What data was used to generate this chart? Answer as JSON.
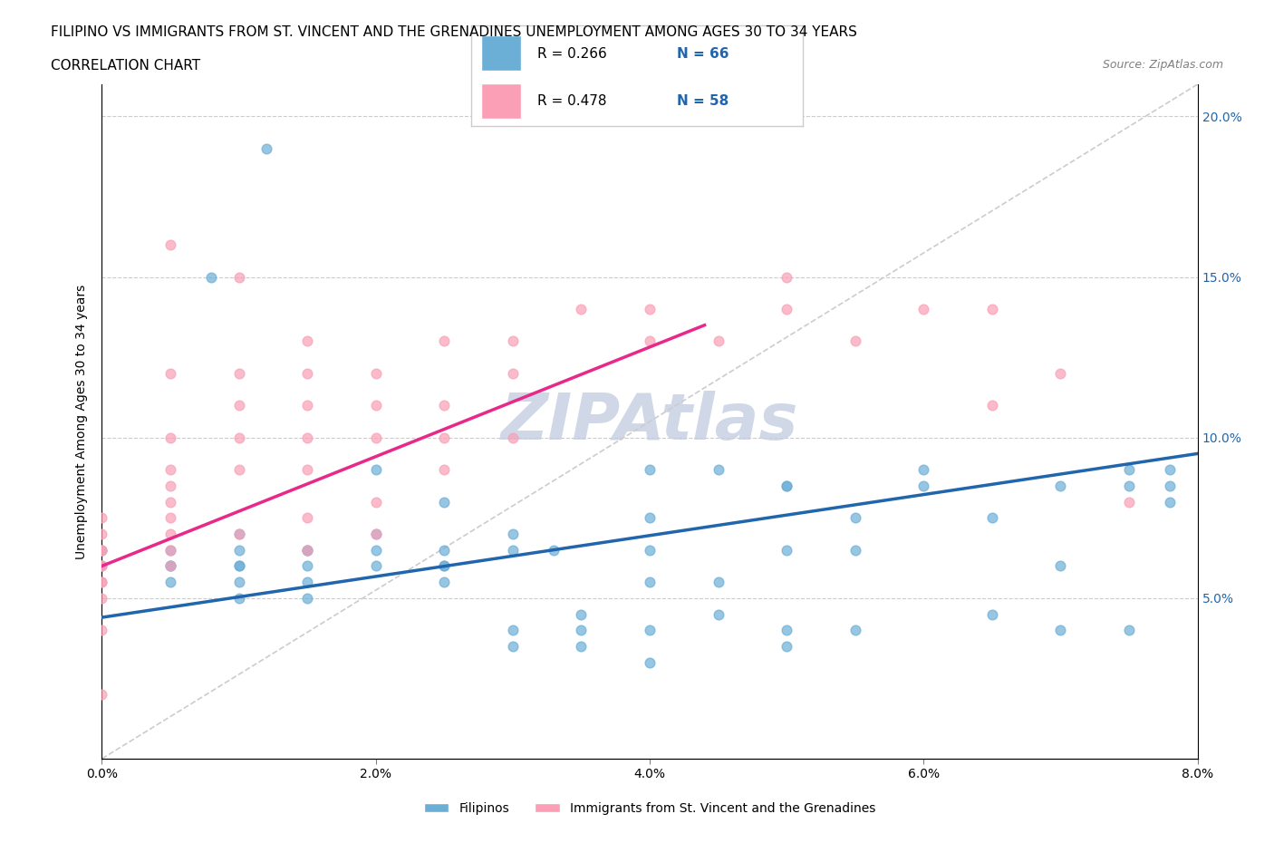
{
  "title_line1": "FILIPINO VS IMMIGRANTS FROM ST. VINCENT AND THE GRENADINES UNEMPLOYMENT AMONG AGES 30 TO 34 YEARS",
  "title_line2": "CORRELATION CHART",
  "source_text": "Source: ZipAtlas.com",
  "ylabel": "Unemployment Among Ages 30 to 34 years",
  "xlim": [
    0.0,
    0.08
  ],
  "ylim": [
    0.0,
    0.21
  ],
  "xtick_labels": [
    "0.0%",
    "2.0%",
    "4.0%",
    "6.0%",
    "8.0%"
  ],
  "xtick_values": [
    0.0,
    0.02,
    0.04,
    0.06,
    0.08
  ],
  "ytick_labels": [
    "5.0%",
    "10.0%",
    "15.0%",
    "20.0%"
  ],
  "ytick_values": [
    0.05,
    0.1,
    0.15,
    0.2
  ],
  "blue_color": "#6baed6",
  "pink_color": "#fa9fb5",
  "blue_line_color": "#2166ac",
  "pink_line_color": "#e7298a",
  "diag_line_color": "#cccccc",
  "watermark_color": "#d0d8e8",
  "legend_R1": "R = 0.266",
  "legend_N1": "N = 66",
  "legend_R2": "R = 0.478",
  "legend_N2": "N = 58",
  "blue_scatter_x": [
    0.0,
    0.0,
    0.005,
    0.005,
    0.005,
    0.005,
    0.01,
    0.01,
    0.01,
    0.01,
    0.01,
    0.01,
    0.015,
    0.015,
    0.015,
    0.015,
    0.015,
    0.02,
    0.02,
    0.02,
    0.02,
    0.025,
    0.025,
    0.025,
    0.025,
    0.025,
    0.03,
    0.03,
    0.03,
    0.03,
    0.033,
    0.035,
    0.035,
    0.035,
    0.04,
    0.04,
    0.04,
    0.04,
    0.04,
    0.04,
    0.045,
    0.045,
    0.045,
    0.05,
    0.05,
    0.05,
    0.05,
    0.05,
    0.055,
    0.055,
    0.055,
    0.06,
    0.06,
    0.065,
    0.065,
    0.07,
    0.07,
    0.07,
    0.075,
    0.075,
    0.075,
    0.078,
    0.078,
    0.078,
    0.008,
    0.012
  ],
  "blue_scatter_y": [
    0.06,
    0.065,
    0.065,
    0.06,
    0.06,
    0.055,
    0.06,
    0.06,
    0.065,
    0.07,
    0.055,
    0.05,
    0.065,
    0.06,
    0.055,
    0.05,
    0.065,
    0.065,
    0.07,
    0.06,
    0.09,
    0.06,
    0.08,
    0.06,
    0.055,
    0.065,
    0.07,
    0.065,
    0.04,
    0.035,
    0.065,
    0.04,
    0.035,
    0.045,
    0.09,
    0.075,
    0.065,
    0.055,
    0.04,
    0.03,
    0.09,
    0.045,
    0.055,
    0.085,
    0.085,
    0.065,
    0.035,
    0.04,
    0.075,
    0.065,
    0.04,
    0.085,
    0.09,
    0.075,
    0.045,
    0.085,
    0.06,
    0.04,
    0.085,
    0.09,
    0.04,
    0.09,
    0.085,
    0.08,
    0.15,
    0.19
  ],
  "pink_scatter_x": [
    0.0,
    0.0,
    0.0,
    0.0,
    0.0,
    0.0,
    0.0,
    0.0,
    0.0,
    0.0,
    0.005,
    0.005,
    0.005,
    0.005,
    0.005,
    0.005,
    0.005,
    0.005,
    0.005,
    0.005,
    0.01,
    0.01,
    0.01,
    0.01,
    0.01,
    0.01,
    0.015,
    0.015,
    0.015,
    0.015,
    0.015,
    0.015,
    0.015,
    0.02,
    0.02,
    0.02,
    0.02,
    0.02,
    0.025,
    0.025,
    0.025,
    0.025,
    0.03,
    0.03,
    0.03,
    0.035,
    0.04,
    0.04,
    0.045,
    0.05,
    0.05,
    0.055,
    0.06,
    0.065,
    0.065,
    0.07,
    0.075,
    0.0
  ],
  "pink_scatter_y": [
    0.06,
    0.065,
    0.055,
    0.05,
    0.06,
    0.07,
    0.075,
    0.065,
    0.055,
    0.04,
    0.07,
    0.065,
    0.06,
    0.075,
    0.08,
    0.09,
    0.085,
    0.1,
    0.12,
    0.16,
    0.07,
    0.1,
    0.09,
    0.11,
    0.12,
    0.15,
    0.065,
    0.075,
    0.09,
    0.1,
    0.11,
    0.12,
    0.13,
    0.07,
    0.08,
    0.1,
    0.11,
    0.12,
    0.09,
    0.1,
    0.11,
    0.13,
    0.1,
    0.12,
    0.13,
    0.14,
    0.13,
    0.14,
    0.13,
    0.14,
    0.15,
    0.13,
    0.14,
    0.11,
    0.14,
    0.12,
    0.08,
    0.02
  ],
  "blue_line_x": [
    0.0,
    0.08
  ],
  "blue_line_y": [
    0.044,
    0.095
  ],
  "pink_line_x": [
    0.0,
    0.044
  ],
  "pink_line_y": [
    0.06,
    0.135
  ],
  "diag_line_x": [
    0.0,
    0.08
  ],
  "diag_line_y": [
    0.0,
    0.21
  ]
}
